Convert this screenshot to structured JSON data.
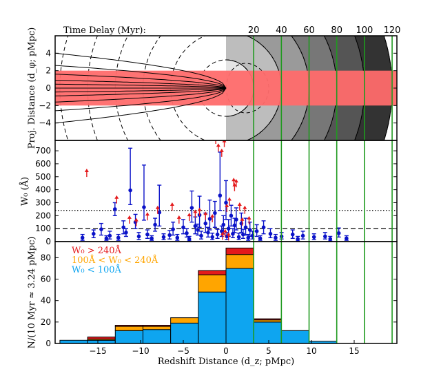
{
  "chart_data": [
    {
      "panel": "top",
      "type": "diagram",
      "ylabel": "Proj. Distance (d_φ; pMpc)",
      "ylim": [
        -6,
        6
      ],
      "yticks": [
        -4,
        -2,
        0,
        2,
        4
      ],
      "ytick_labels": [
        "−4",
        "−2",
        "0",
        "2",
        "4"
      ],
      "xlim": [
        -20,
        20
      ],
      "band": {
        "y_range": [
          -2,
          2
        ],
        "color": "#ff6b6b"
      },
      "shells": [
        {
          "delay_myr": 20,
          "shade": "#e4e4e4"
        },
        {
          "delay_myr": 40,
          "shade": "#bdbdbd"
        },
        {
          "delay_myr": 60,
          "shade": "#9a9a9a"
        },
        {
          "delay_myr": 80,
          "shade": "#777777"
        },
        {
          "delay_myr": 100,
          "shade": "#555555"
        },
        {
          "delay_myr": 120,
          "shade": "#333333"
        }
      ],
      "time_delay_title": "Time Delay (Myr):",
      "time_delay_ticks": [
        "20",
        "40",
        "60",
        "80",
        "100",
        "120"
      ],
      "time_delay_x": [
        3.24,
        6.48,
        9.72,
        12.96,
        16.2,
        19.44
      ]
    },
    {
      "panel": "middle",
      "type": "scatter",
      "ylabel": "W₀ (Å)",
      "ylim": [
        0,
        780
      ],
      "yticks": [
        0,
        100,
        200,
        300,
        400,
        500,
        600,
        700
      ],
      "ytick_labels": [
        "0",
        "100",
        "200",
        "300",
        "400",
        "500",
        "600",
        "700"
      ],
      "xlim": [
        -20,
        20
      ],
      "thresholds": [
        {
          "value": 240,
          "style": "dotted"
        },
        {
          "value": 100,
          "style": "dashed"
        }
      ],
      "series": [
        {
          "name": "detections",
          "color": "#0a12c8",
          "points": [
            {
              "x": -11.2,
              "y": 395,
              "lo": 285,
              "hi": 720
            },
            {
              "x": -9.6,
              "y": 265,
              "lo": 165,
              "hi": 590
            },
            {
              "x": -7.8,
              "y": 225,
              "lo": 120,
              "hi": 435
            },
            {
              "x": -4.0,
              "y": 260,
              "lo": 150,
              "hi": 390
            },
            {
              "x": -3.1,
              "y": 205,
              "lo": 110,
              "hi": 350
            },
            {
              "x": -0.7,
              "y": 355,
              "lo": 240,
              "hi": 690
            },
            {
              "x": 0.0,
              "y": 300,
              "lo": 170,
              "hi": 470
            },
            {
              "x": -1.9,
              "y": 175,
              "lo": 90,
              "hi": 320
            },
            {
              "x": -2.4,
              "y": 140,
              "lo": 70,
              "hi": 220
            },
            {
              "x": -3.6,
              "y": 120,
              "lo": 60,
              "hi": 190
            },
            {
              "x": -5.0,
              "y": 110,
              "lo": 60,
              "hi": 170
            },
            {
              "x": -6.2,
              "y": 95,
              "lo": 50,
              "hi": 150
            },
            {
              "x": -8.3,
              "y": 130,
              "lo": 80,
              "hi": 180
            },
            {
              "x": -10.6,
              "y": 150,
              "lo": 100,
              "hi": 210
            },
            {
              "x": -12.0,
              "y": 110,
              "lo": 60,
              "hi": 160
            },
            {
              "x": -13.0,
              "y": 250,
              "lo": 200,
              "hi": 300
            },
            {
              "x": -14.6,
              "y": 95,
              "lo": 50,
              "hi": 140
            },
            {
              "x": -1.3,
              "y": 220,
              "lo": 110,
              "hi": 310
            },
            {
              "x": 0.6,
              "y": 200,
              "lo": 120,
              "hi": 280
            },
            {
              "x": 1.2,
              "y": 170,
              "lo": 90,
              "hi": 260
            },
            {
              "x": 1.8,
              "y": 140,
              "lo": 70,
              "hi": 220
            },
            {
              "x": 2.3,
              "y": 110,
              "lo": 50,
              "hi": 180
            },
            {
              "x": 2.8,
              "y": 90,
              "lo": 40,
              "hi": 150
            },
            {
              "x": -0.3,
              "y": 130,
              "lo": 60,
              "hi": 200
            },
            {
              "x": 0.3,
              "y": 100,
              "lo": 40,
              "hi": 170
            },
            {
              "x": 3.6,
              "y": 80,
              "lo": 40,
              "hi": 130
            },
            {
              "x": 4.4,
              "y": 110,
              "lo": 60,
              "hi": 160
            },
            {
              "x": 5.2,
              "y": 60,
              "lo": 30,
              "hi": 100
            },
            {
              "x": 6.5,
              "y": 40,
              "lo": 20,
              "hi": 70
            },
            {
              "x": 7.8,
              "y": 55,
              "lo": 25,
              "hi": 90
            },
            {
              "x": 9.0,
              "y": 45,
              "lo": 20,
              "hi": 80
            },
            {
              "x": 10.3,
              "y": 35,
              "lo": 15,
              "hi": 60
            },
            {
              "x": 11.6,
              "y": 40,
              "lo": 20,
              "hi": 70
            },
            {
              "x": 13.2,
              "y": 65,
              "lo": 35,
              "hi": 105
            },
            {
              "x": 14.1,
              "y": 25,
              "lo": 10,
              "hi": 45
            },
            {
              "x": -16.8,
              "y": 30,
              "lo": 10,
              "hi": 55
            },
            {
              "x": -15.5,
              "y": 60,
              "lo": 30,
              "hi": 90
            },
            {
              "x": -13.6,
              "y": 45,
              "lo": 20,
              "hi": 80
            },
            {
              "x": -12.6,
              "y": 30,
              "lo": 10,
              "hi": 55
            },
            {
              "x": -11.7,
              "y": 70,
              "lo": 40,
              "hi": 100
            },
            {
              "x": -10.2,
              "y": 40,
              "lo": 15,
              "hi": 70
            },
            {
              "x": -9.2,
              "y": 55,
              "lo": 25,
              "hi": 90
            },
            {
              "x": -8.7,
              "y": 25,
              "lo": 10,
              "hi": 45
            },
            {
              "x": -7.3,
              "y": 35,
              "lo": 15,
              "hi": 60
            },
            {
              "x": -6.6,
              "y": 50,
              "lo": 20,
              "hi": 85
            },
            {
              "x": -5.7,
              "y": 30,
              "lo": 10,
              "hi": 55
            },
            {
              "x": -4.6,
              "y": 65,
              "lo": 35,
              "hi": 100
            },
            {
              "x": -4.3,
              "y": 20,
              "lo": 5,
              "hi": 40
            },
            {
              "x": -2.9,
              "y": 45,
              "lo": 20,
              "hi": 80
            },
            {
              "x": -2.1,
              "y": 70,
              "lo": 35,
              "hi": 110
            },
            {
              "x": -1.6,
              "y": 35,
              "lo": 15,
              "hi": 65
            },
            {
              "x": -1.0,
              "y": 55,
              "lo": 25,
              "hi": 95
            },
            {
              "x": -0.5,
              "y": 80,
              "lo": 40,
              "hi": 120
            },
            {
              "x": 0.1,
              "y": 40,
              "lo": 15,
              "hi": 70
            },
            {
              "x": 0.8,
              "y": 60,
              "lo": 30,
              "hi": 100
            },
            {
              "x": 1.5,
              "y": 35,
              "lo": 15,
              "hi": 65
            },
            {
              "x": 2.0,
              "y": 55,
              "lo": 25,
              "hi": 95
            },
            {
              "x": 2.6,
              "y": 30,
              "lo": 10,
              "hi": 55
            },
            {
              "x": 3.1,
              "y": 45,
              "lo": 20,
              "hi": 80
            },
            {
              "x": 4.0,
              "y": 25,
              "lo": 10,
              "hi": 45
            },
            {
              "x": 5.8,
              "y": 30,
              "lo": 10,
              "hi": 55
            },
            {
              "x": 8.4,
              "y": 20,
              "lo": 5,
              "hi": 40
            },
            {
              "x": 12.2,
              "y": 20,
              "lo": 5,
              "hi": 40
            },
            {
              "x": -14.0,
              "y": 25,
              "lo": 10,
              "hi": 45
            },
            {
              "x": -3.3,
              "y": 90,
              "lo": 50,
              "hi": 135
            },
            {
              "x": 1.0,
              "y": 125,
              "lo": 70,
              "hi": 180
            }
          ]
        },
        {
          "name": "lower limits",
          "color": "#e41a1c",
          "points": [
            {
              "x": -16.3,
              "y": 525
            },
            {
              "x": -12.8,
              "y": 320
            },
            {
              "x": -11.3,
              "y": 165
            },
            {
              "x": -10.5,
              "y": 145
            },
            {
              "x": -9.2,
              "y": 190
            },
            {
              "x": -8.0,
              "y": 240
            },
            {
              "x": -6.3,
              "y": 265
            },
            {
              "x": -5.5,
              "y": 165
            },
            {
              "x": -4.3,
              "y": 185
            },
            {
              "x": -3.6,
              "y": 210
            },
            {
              "x": -3.1,
              "y": 225
            },
            {
              "x": -2.4,
              "y": 195
            },
            {
              "x": -1.2,
              "y": 780
            },
            {
              "x": -0.9,
              "y": 720
            },
            {
              "x": -0.5,
              "y": 680
            },
            {
              "x": -0.2,
              "y": 755
            },
            {
              "x": 0.9,
              "y": 455
            },
            {
              "x": 1.2,
              "y": 445
            },
            {
              "x": 1.0,
              "y": 415
            },
            {
              "x": 0.4,
              "y": 305
            },
            {
              "x": 1.6,
              "y": 265
            },
            {
              "x": 2.2,
              "y": 240
            },
            {
              "x": 0.1,
              "y": 255
            },
            {
              "x": -1.6,
              "y": 175
            },
            {
              "x": 1.9,
              "y": 150
            },
            {
              "x": 2.7,
              "y": 160
            },
            {
              "x": -0.1,
              "y": 60
            },
            {
              "x": 0.3,
              "y": 35
            },
            {
              "x": -0.4,
              "y": 40
            }
          ]
        }
      ]
    },
    {
      "panel": "bottom",
      "type": "bar",
      "stacked": true,
      "ylabel": "N/(10 Myr ≈ 3.24 pMpc)",
      "ylim": [
        0,
        95
      ],
      "yticks": [
        0,
        20,
        40,
        60,
        80
      ],
      "ytick_labels": [
        "0",
        "20",
        "40",
        "60",
        "80"
      ],
      "xlim": [
        -20,
        20
      ],
      "xticks": [
        -15,
        -10,
        -5,
        0,
        5,
        10,
        15
      ],
      "xtick_labels": [
        "−15",
        "−10",
        "−5",
        "0",
        "5",
        "10",
        "15"
      ],
      "xlabel": "Redshift Distance (d_z; pMpc)",
      "bin_edges": [
        -19.44,
        -16.2,
        -12.96,
        -9.72,
        -6.48,
        -3.24,
        0,
        3.24,
        6.48,
        9.72,
        12.96,
        16.2,
        19.44
      ],
      "series": [
        {
          "name": "W₀ < 100Å",
          "color": "#0ea5f0",
          "values": [
            3,
            3,
            12,
            13,
            19,
            48,
            70,
            20,
            12,
            2,
            0,
            0
          ]
        },
        {
          "name": "100Å < W₀ < 240Å",
          "color": "#ffa500",
          "values": [
            0,
            1,
            4,
            3,
            5,
            16,
            13,
            2,
            0,
            0,
            0,
            0
          ]
        },
        {
          "name": "W₀ > 240Å",
          "color": "#e41a1c",
          "values": [
            0,
            2,
            1,
            1,
            0,
            4,
            6,
            1,
            0,
            0,
            0,
            0
          ]
        }
      ],
      "legend": {
        "placement": "top-left",
        "entries": [
          "W₀ > 240Å",
          "100Å < W₀ < 240Å",
          "W₀ < 100Å"
        ],
        "colors": [
          "#e41a1c",
          "#ffa500",
          "#0ea5f0"
        ]
      }
    }
  ]
}
